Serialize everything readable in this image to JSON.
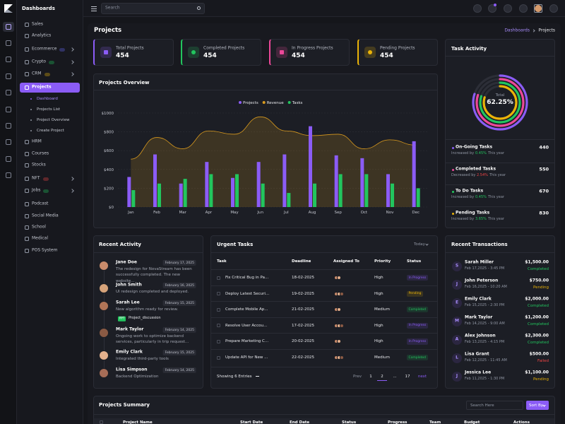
{
  "sidebar": {
    "brand": "Dashboards",
    "menu": [
      "Sales",
      "Analytics",
      "Ecommerce",
      "Crypto",
      "CRM",
      "Projects",
      "HRM",
      "Courses",
      "Stocks",
      "NFT",
      "Jobs",
      "Podcast",
      "Social Media",
      "School",
      "Medical",
      "POS System"
    ],
    "submenu": [
      "Dashboard",
      "Projects List",
      "Project Overview",
      "Create Project"
    ]
  },
  "header": {
    "search_placeholder": "Search"
  },
  "page": {
    "title": "Projects",
    "breadcrumb": [
      "Dashboards",
      "Projects"
    ]
  },
  "stats": [
    {
      "label": "Total Projects",
      "value": 454
    },
    {
      "label": "Completed Projects",
      "value": 454
    },
    {
      "label": "In Progress Projects",
      "value": 454
    },
    {
      "label": "Pending Projects",
      "value": 454
    }
  ],
  "chart_data": {
    "type": "bar",
    "title": "Projects Overview",
    "categories": [
      "Jan",
      "Feb",
      "Mar",
      "Apr",
      "May",
      "Jun",
      "Jul",
      "Aug",
      "Sep",
      "Oct",
      "Nov",
      "Dec"
    ],
    "series": [
      {
        "name": "Projects",
        "color": "#8b5cf6",
        "values": [
          320,
          560,
          250,
          480,
          310,
          480,
          560,
          860,
          550,
          520,
          350,
          700
        ]
      },
      {
        "name": "Revenue",
        "color": "#d99a1e",
        "type": "area",
        "values": [
          510,
          740,
          620,
          810,
          775,
          960,
          810,
          760,
          775,
          620,
          715,
          660
        ]
      },
      {
        "name": "Tasks",
        "color": "#22c55e",
        "values": [
          180,
          250,
          300,
          350,
          350,
          250,
          150,
          250,
          350,
          350,
          250,
          200
        ]
      }
    ],
    "ylim": [
      0,
      1000
    ],
    "yticks": [
      {
        "value": 0,
        "label": "$0"
      },
      {
        "value": 200,
        "label": "$200"
      },
      {
        "value": 400,
        "label": "$400"
      },
      {
        "value": 600,
        "label": "$600"
      },
      {
        "value": 800,
        "label": "$800"
      },
      {
        "value": 1000,
        "label": "$1000"
      }
    ],
    "grid": true
  },
  "task_activity": {
    "title": "Task Activity",
    "center_label": "Total",
    "center_value": "62.25%",
    "items": [
      {
        "label": "On-Going Tasks",
        "value": 440,
        "change_label": "Increased by",
        "change": "0.45%",
        "period": "This year"
      },
      {
        "label": "Completed Tasks",
        "value": 550,
        "change_label": "Decreased by",
        "change": "2.54%",
        "period": "This year"
      },
      {
        "label": "To Do Tasks",
        "value": 670,
        "change_label": "Increased by",
        "change": "0.45%",
        "period": "This year"
      },
      {
        "label": "Pending Tasks",
        "value": 830,
        "change_label": "Increased by",
        "change": "3.65%",
        "period": "This year"
      }
    ]
  },
  "recent_activity": {
    "title": "Recent Activity",
    "items": [
      {
        "name": "Jane Doe",
        "date": "February 17, 2025",
        "text": "The redesign for NovaStream has been successfully completed. The new website..."
      },
      {
        "name": "John Smith",
        "date": "February 16, 2025",
        "text": "UI redesign completed and deployed."
      },
      {
        "name": "Sarah Lee",
        "date": "February 15, 2025",
        "text": "New algorithm ready for review.",
        "attachment": {
          "type": "PPT",
          "name": "Project_discussion"
        }
      },
      {
        "name": "Mark Taylor",
        "date": "February 14, 2025",
        "text": "Ongoing work to optimize backend services, particularly in trip request..."
      },
      {
        "name": "Emily Clark",
        "date": "February 15, 2025",
        "text": "Integrated third-party tools"
      },
      {
        "name": "Lisa Simpson",
        "date": "February 14, 2025",
        "text": "Backend Optimization"
      }
    ]
  },
  "urgent_tasks": {
    "title": "Urgent Tasks",
    "filter": "Today",
    "columns": [
      "Task",
      "Deadline",
      "Assigned To",
      "Priority",
      "Status"
    ],
    "rows": [
      {
        "task": "Fix Critical Bug in Pa...",
        "deadline": "18-02-2025",
        "priority": "High",
        "status": "In Progress"
      },
      {
        "task": "Deploy Latest Securi...",
        "deadline": "19-02-2025",
        "priority": "High",
        "status": "Pending"
      },
      {
        "task": "Complete Mobile Ap...",
        "deadline": "21-02-2025",
        "priority": "Medium",
        "status": "Completed"
      },
      {
        "task": "Resolve User Accou...",
        "deadline": "17-02-2025",
        "priority": "High",
        "status": "In Progress"
      },
      {
        "task": "Prepare Marketing C...",
        "deadline": "20-02-2025",
        "priority": "High",
        "status": "In Progress"
      },
      {
        "task": "Update API for New ...",
        "deadline": "22-02-2025",
        "priority": "Medium",
        "status": "Completed"
      }
    ],
    "footer": "Showing 6 Entries",
    "pagination": [
      "Prev",
      "1",
      "2",
      "...",
      "17",
      "next"
    ]
  },
  "transactions": {
    "title": "Recent Transactions",
    "items": [
      {
        "initial": "S",
        "name": "Sarah Miller",
        "date": "Feb 17,2025 - 3:45 PM",
        "amount": "$1,500.00",
        "status": "Completed"
      },
      {
        "initial": "J",
        "name": "John Peterson",
        "date": "Feb 16,2025 - 10:20 AM",
        "amount": "$750.00",
        "status": "Pending"
      },
      {
        "initial": "E",
        "name": "Emily Clark",
        "date": "Feb 15,2025 - 2:30 PM",
        "amount": "$2,000.00",
        "status": "Completed"
      },
      {
        "initial": "M",
        "name": "Mark Taylor",
        "date": "Feb 14,2025 - 9:00 AM",
        "amount": "$1,200.00",
        "status": "Completed"
      },
      {
        "initial": "A",
        "name": "Alex Johnson",
        "date": "Feb 13,2025 - 4:15 PM",
        "amount": "$2,300.00",
        "status": "Completed"
      },
      {
        "initial": "L",
        "name": "Lisa Grant",
        "date": "Feb 12,2025 - 11:45 AM",
        "amount": "$500.00",
        "status": "Failed"
      },
      {
        "initial": "J",
        "name": "Jessica Lee",
        "date": "Feb 11,2025 - 1:30 PM",
        "amount": "$1,100.00",
        "status": "Pending"
      }
    ]
  },
  "projects_summary": {
    "title": "Projects Summary",
    "search_placeholder": "Search Here",
    "sort": "Sort By",
    "columns": [
      "Project Name",
      "Start Date",
      "End Date",
      "Status",
      "Progress",
      "Team",
      "Budget",
      "Actions"
    ]
  }
}
